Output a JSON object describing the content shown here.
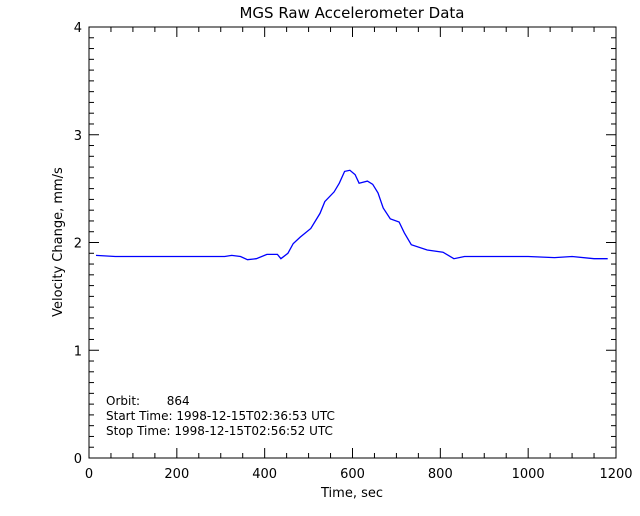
{
  "chart_data": {
    "type": "line",
    "title": "MGS Raw Accelerometer Data",
    "xlabel": "Time, sec",
    "ylabel": "Velocity Change, mm/s",
    "xlim": [
      0,
      1200
    ],
    "ylim": [
      0,
      4
    ],
    "xticks": [
      0,
      200,
      400,
      600,
      800,
      1000,
      1200
    ],
    "yticks": [
      0,
      1,
      2,
      3,
      4
    ],
    "grid": false,
    "line_color": "#0000ff",
    "annotations": [
      "Orbit:       864",
      "Start Time: 1998-12-15T02:36:53 UTC",
      "Stop Time: 1998-12-15T02:56:52 UTC"
    ],
    "x": [
      16,
      60,
      120,
      200,
      260,
      309,
      325,
      345,
      361,
      381,
      405,
      429,
      437,
      453,
      465,
      481,
      505,
      526,
      537,
      558,
      570,
      582,
      594,
      606,
      615,
      634,
      646,
      658,
      670,
      686,
      706,
      718,
      734,
      770,
      806,
      831,
      855,
      900,
      1000,
      1060,
      1100,
      1150,
      1181
    ],
    "y": [
      1.88,
      1.87,
      1.87,
      1.87,
      1.87,
      1.87,
      1.88,
      1.87,
      1.84,
      1.85,
      1.89,
      1.89,
      1.85,
      1.9,
      1.99,
      2.05,
      2.13,
      2.27,
      2.38,
      2.47,
      2.55,
      2.66,
      2.67,
      2.63,
      2.55,
      2.57,
      2.54,
      2.46,
      2.32,
      2.22,
      2.19,
      2.09,
      1.98,
      1.93,
      1.91,
      1.85,
      1.87,
      1.87,
      1.87,
      1.86,
      1.87,
      1.85,
      1.85
    ]
  }
}
